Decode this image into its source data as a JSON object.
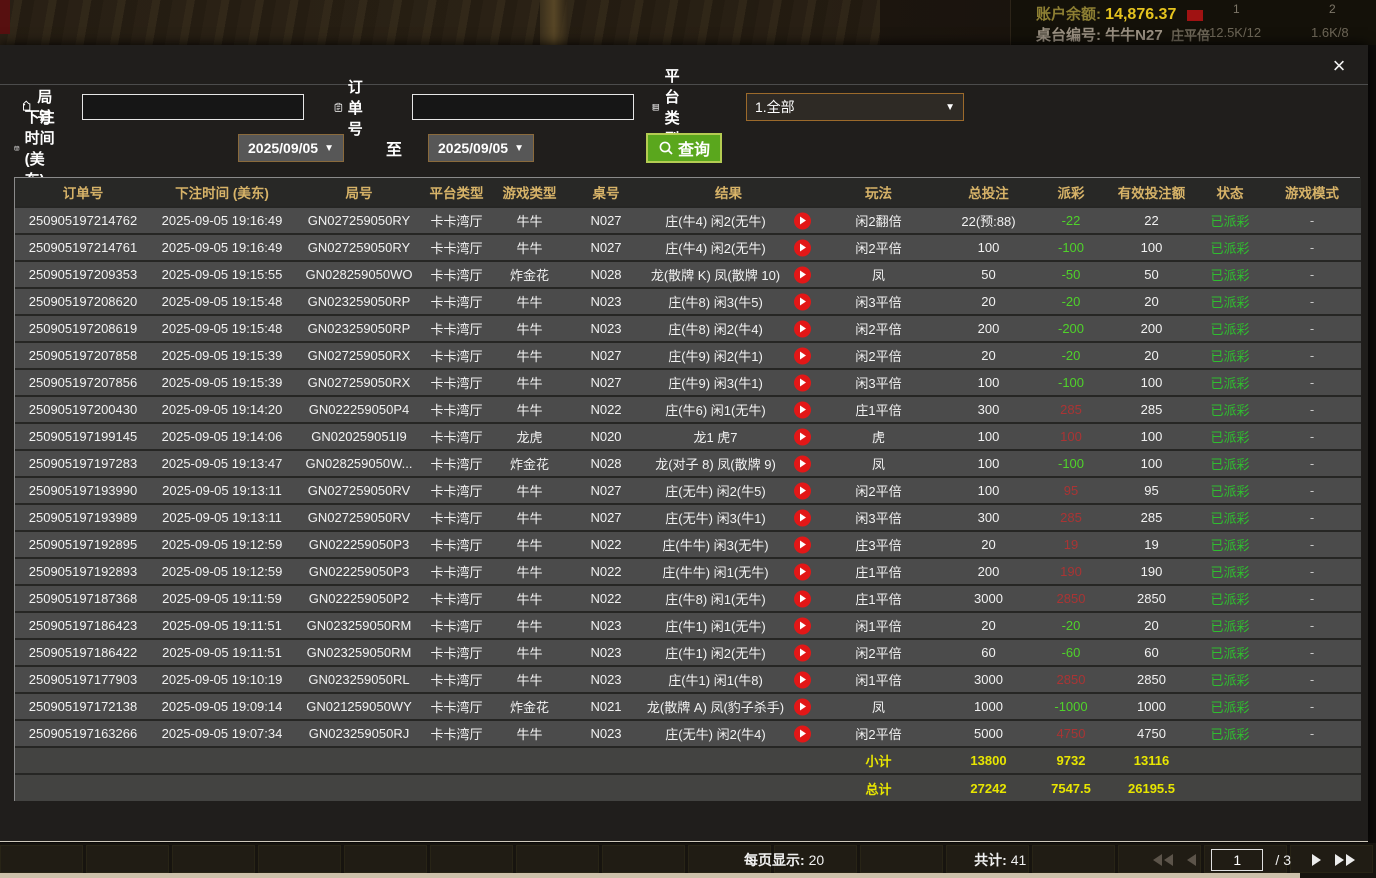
{
  "background": {
    "balance_label": "账户余额:",
    "balance_value": "14,876.37",
    "table_label": "桌台编号:",
    "table_value": "牛牛N27",
    "limit_label": "庄平倍",
    "limit1": "12.5K/12",
    "limit2": "1.6K/8",
    "col1": "1",
    "col2": "2",
    "row1": "1"
  },
  "modal": {
    "close_glyph": "×",
    "caret_down": "▼",
    "filters": {
      "round_label": "局号",
      "round_value": "",
      "order_label": "订单号",
      "order_value": "",
      "platform_label": "平台类型",
      "platform_value": "1.全部",
      "bet_time_label": "下注时间 (美东)",
      "date_from": "2025/09/05",
      "to_label": "至",
      "date_to": "2025/09/05",
      "query_label": "查询"
    },
    "table": {
      "headers": [
        "订单号",
        "下注时间 (美东)",
        "局号",
        "平台类型",
        "游戏类型",
        "桌号",
        "结果",
        "玩法",
        "总投注",
        "派彩",
        "有效投注额",
        "状态",
        "游戏模式"
      ],
      "rows": [
        {
          "order": "250905197214762",
          "time": "2025-09-05 19:16:49",
          "round": "GN027259050RY",
          "platform": "卡卡湾厅",
          "game": "牛牛",
          "table": "N027",
          "result": "庄(牛4) 闲2(无牛)",
          "bet": "闲2翻倍",
          "stake": "22(预:88)",
          "payout": "-22",
          "payout_class": "neg",
          "valid": "22",
          "status": "已派彩",
          "mode": "-"
        },
        {
          "order": "250905197214761",
          "time": "2025-09-05 19:16:49",
          "round": "GN027259050RY",
          "platform": "卡卡湾厅",
          "game": "牛牛",
          "table": "N027",
          "result": "庄(牛4) 闲2(无牛)",
          "bet": "闲2平倍",
          "stake": "100",
          "payout": "-100",
          "payout_class": "neg",
          "valid": "100",
          "status": "已派彩",
          "mode": "-"
        },
        {
          "order": "250905197209353",
          "time": "2025-09-05 19:15:55",
          "round": "GN028259050WO",
          "platform": "卡卡湾厅",
          "game": "炸金花",
          "table": "N028",
          "result": "龙(散牌 K) 凤(散牌 10)",
          "bet": "凤",
          "stake": "50",
          "payout": "-50",
          "payout_class": "neg",
          "valid": "50",
          "status": "已派彩",
          "mode": "-"
        },
        {
          "order": "250905197208620",
          "time": "2025-09-05 19:15:48",
          "round": "GN023259050RP",
          "platform": "卡卡湾厅",
          "game": "牛牛",
          "table": "N023",
          "result": "庄(牛8) 闲3(牛5)",
          "bet": "闲3平倍",
          "stake": "20",
          "payout": "-20",
          "payout_class": "neg",
          "valid": "20",
          "status": "已派彩",
          "mode": "-"
        },
        {
          "order": "250905197208619",
          "time": "2025-09-05 19:15:48",
          "round": "GN023259050RP",
          "platform": "卡卡湾厅",
          "game": "牛牛",
          "table": "N023",
          "result": "庄(牛8) 闲2(牛4)",
          "bet": "闲2平倍",
          "stake": "200",
          "payout": "-200",
          "payout_class": "neg",
          "valid": "200",
          "status": "已派彩",
          "mode": "-"
        },
        {
          "order": "250905197207858",
          "time": "2025-09-05 19:15:39",
          "round": "GN027259050RX",
          "platform": "卡卡湾厅",
          "game": "牛牛",
          "table": "N027",
          "result": "庄(牛9) 闲2(牛1)",
          "bet": "闲2平倍",
          "stake": "20",
          "payout": "-20",
          "payout_class": "neg",
          "valid": "20",
          "status": "已派彩",
          "mode": "-"
        },
        {
          "order": "250905197207856",
          "time": "2025-09-05 19:15:39",
          "round": "GN027259050RX",
          "platform": "卡卡湾厅",
          "game": "牛牛",
          "table": "N027",
          "result": "庄(牛9) 闲3(牛1)",
          "bet": "闲3平倍",
          "stake": "100",
          "payout": "-100",
          "payout_class": "neg",
          "valid": "100",
          "status": "已派彩",
          "mode": "-"
        },
        {
          "order": "250905197200430",
          "time": "2025-09-05 19:14:20",
          "round": "GN022259050P4",
          "platform": "卡卡湾厅",
          "game": "牛牛",
          "table": "N022",
          "result": "庄(牛6) 闲1(无牛)",
          "bet": "庄1平倍",
          "stake": "300",
          "payout": "285",
          "payout_class": "pos",
          "valid": "285",
          "status": "已派彩",
          "mode": "-"
        },
        {
          "order": "250905197199145",
          "time": "2025-09-05 19:14:06",
          "round": "GN020259051I9",
          "platform": "卡卡湾厅",
          "game": "龙虎",
          "table": "N020",
          "result": "龙1 虎7",
          "bet": "虎",
          "stake": "100",
          "payout": "100",
          "payout_class": "pos",
          "valid": "100",
          "status": "已派彩",
          "mode": "-"
        },
        {
          "order": "250905197197283",
          "time": "2025-09-05 19:13:47",
          "round": "GN028259050W...",
          "platform": "卡卡湾厅",
          "game": "炸金花",
          "table": "N028",
          "result": "龙(对子 8) 凤(散牌 9)",
          "bet": "凤",
          "stake": "100",
          "payout": "-100",
          "payout_class": "neg",
          "valid": "100",
          "status": "已派彩",
          "mode": "-"
        },
        {
          "order": "250905197193990",
          "time": "2025-09-05 19:13:11",
          "round": "GN027259050RV",
          "platform": "卡卡湾厅",
          "game": "牛牛",
          "table": "N027",
          "result": "庄(无牛) 闲2(牛5)",
          "bet": "闲2平倍",
          "stake": "100",
          "payout": "95",
          "payout_class": "pos",
          "valid": "95",
          "status": "已派彩",
          "mode": "-"
        },
        {
          "order": "250905197193989",
          "time": "2025-09-05 19:13:11",
          "round": "GN027259050RV",
          "platform": "卡卡湾厅",
          "game": "牛牛",
          "table": "N027",
          "result": "庄(无牛) 闲3(牛1)",
          "bet": "闲3平倍",
          "stake": "300",
          "payout": "285",
          "payout_class": "pos",
          "valid": "285",
          "status": "已派彩",
          "mode": "-"
        },
        {
          "order": "250905197192895",
          "time": "2025-09-05 19:12:59",
          "round": "GN022259050P3",
          "platform": "卡卡湾厅",
          "game": "牛牛",
          "table": "N022",
          "result": "庄(牛牛) 闲3(无牛)",
          "bet": "庄3平倍",
          "stake": "20",
          "payout": "19",
          "payout_class": "pos",
          "valid": "19",
          "status": "已派彩",
          "mode": "-"
        },
        {
          "order": "250905197192893",
          "time": "2025-09-05 19:12:59",
          "round": "GN022259050P3",
          "platform": "卡卡湾厅",
          "game": "牛牛",
          "table": "N022",
          "result": "庄(牛牛) 闲1(无牛)",
          "bet": "庄1平倍",
          "stake": "200",
          "payout": "190",
          "payout_class": "pos",
          "valid": "190",
          "status": "已派彩",
          "mode": "-"
        },
        {
          "order": "250905197187368",
          "time": "2025-09-05 19:11:59",
          "round": "GN022259050P2",
          "platform": "卡卡湾厅",
          "game": "牛牛",
          "table": "N022",
          "result": "庄(牛8) 闲1(无牛)",
          "bet": "庄1平倍",
          "stake": "3000",
          "payout": "2850",
          "payout_class": "pos",
          "valid": "2850",
          "status": "已派彩",
          "mode": "-"
        },
        {
          "order": "250905197186423",
          "time": "2025-09-05 19:11:51",
          "round": "GN023259050RM",
          "platform": "卡卡湾厅",
          "game": "牛牛",
          "table": "N023",
          "result": "庄(牛1) 闲1(无牛)",
          "bet": "闲1平倍",
          "stake": "20",
          "payout": "-20",
          "payout_class": "neg",
          "valid": "20",
          "status": "已派彩",
          "mode": "-"
        },
        {
          "order": "250905197186422",
          "time": "2025-09-05 19:11:51",
          "round": "GN023259050RM",
          "platform": "卡卡湾厅",
          "game": "牛牛",
          "table": "N023",
          "result": "庄(牛1) 闲2(无牛)",
          "bet": "闲2平倍",
          "stake": "60",
          "payout": "-60",
          "payout_class": "neg",
          "valid": "60",
          "status": "已派彩",
          "mode": "-"
        },
        {
          "order": "250905197177903",
          "time": "2025-09-05 19:10:19",
          "round": "GN023259050RL",
          "platform": "卡卡湾厅",
          "game": "牛牛",
          "table": "N023",
          "result": "庄(牛1) 闲1(牛8)",
          "bet": "闲1平倍",
          "stake": "3000",
          "payout": "2850",
          "payout_class": "pos",
          "valid": "2850",
          "status": "已派彩",
          "mode": "-"
        },
        {
          "order": "250905197172138",
          "time": "2025-09-05 19:09:14",
          "round": "GN021259050WY",
          "platform": "卡卡湾厅",
          "game": "炸金花",
          "table": "N021",
          "result": "龙(散牌 A) 凤(豹子杀手)",
          "bet": "凤",
          "stake": "1000",
          "payout": "-1000",
          "payout_class": "neg",
          "valid": "1000",
          "status": "已派彩",
          "mode": "-"
        },
        {
          "order": "250905197163266",
          "time": "2025-09-05 19:07:34",
          "round": "GN023259050RJ",
          "platform": "卡卡湾厅",
          "game": "牛牛",
          "table": "N023",
          "result": "庄(无牛) 闲2(牛4)",
          "bet": "闲2平倍",
          "stake": "5000",
          "payout": "4750",
          "payout_class": "pos",
          "valid": "4750",
          "status": "已派彩",
          "mode": "-"
        }
      ],
      "subtotal": {
        "label": "小计",
        "stake": "13800",
        "payout": "9732",
        "valid": "13116"
      },
      "total": {
        "label": "总计",
        "stake": "27242",
        "payout": "7547.5",
        "valid": "26195.5"
      }
    },
    "footer": {
      "per_page_label": "每页显示:",
      "per_page_value": "20",
      "total_label": "共计:",
      "total_value": "41",
      "page_value": "1",
      "page_sep": "/",
      "page_count": "3"
    }
  }
}
